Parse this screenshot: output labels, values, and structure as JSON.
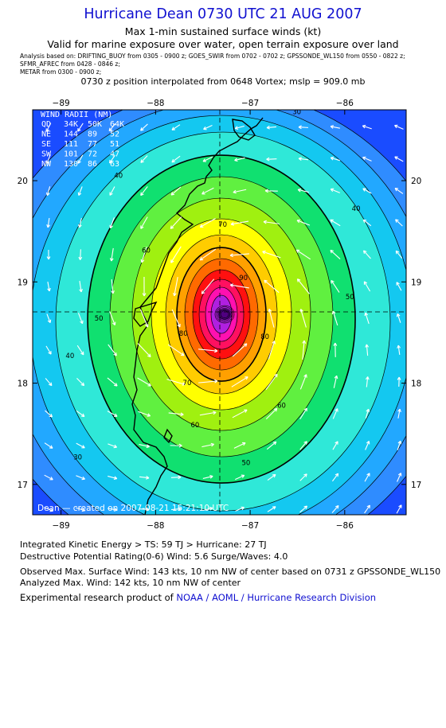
{
  "header": {
    "title": "Hurricane Dean 0730 UTC 21 AUG 2007",
    "subtitle1": "Max 1-min sustained surface winds (kt)",
    "subtitle2": "Valid for marine exposure over water, open terrain exposure over land",
    "sources": [
      "Analysis based on:  DRIFTING_BUOY from 0305 - 0900 z;  GOES_SWIR from 0702 - 0702 z;  GPSSONDE_WL150 from 0550 - 0822 z;",
      "SFMR_AFREC from 0428 - 0846 z;",
      "METAR from 0300 - 0900 z;"
    ],
    "position_line": "0730 z position interpolated from 0648 Vortex; mslp = 909.0 mb"
  },
  "map": {
    "lon_labels": [
      "−89",
      "−88",
      "−87",
      "−86"
    ],
    "lat_labels": [
      "20",
      "19",
      "18",
      "17"
    ],
    "lon_range": [
      -89.3,
      -85.35
    ],
    "lat_range": [
      16.7,
      20.7
    ],
    "center": {
      "lon": -87.27,
      "lat": 18.68
    },
    "credit": "Dean — created on 2007-08-21 15:21:10 UTC",
    "contour_labels": [
      "30",
      "30",
      "30",
      "40",
      "40",
      "40",
      "50",
      "50",
      "50",
      "60",
      "60",
      "60",
      "70",
      "70",
      "80",
      "80",
      "90"
    ],
    "wind_radii": {
      "title": "WIND RADII (NM)",
      "header": [
        "QD",
        "34K",
        "50K",
        "64K"
      ],
      "rows": [
        [
          "NE",
          "144",
          "89",
          "52"
        ],
        [
          "SE",
          "111",
          "77",
          "51"
        ],
        [
          "SW",
          "101",
          "72",
          "47"
        ],
        [
          "NW",
          "130",
          "86",
          "63"
        ]
      ]
    },
    "colors": {
      "blue_deep": "#1a4cff",
      "blue": "#2f8cff",
      "cyan": "#14c8f0",
      "aqua": "#2fe8d8",
      "green": "#10e070",
      "yellowgreen": "#a0f010",
      "yellow": "#ffff00",
      "orange": "#ffa000",
      "orangered": "#ff6a00",
      "red": "#ff1010",
      "magenta": "#ff10b0",
      "purple": "#b020e0"
    }
  },
  "footer": {
    "ike": "Integrated Kinetic Energy > TS: 59 TJ   > Hurricane: 27 TJ",
    "dpr": "Destructive Potential Rating(0-6)   Wind: 5.6 Surge/Waves: 4.0",
    "observed": "Observed Max. Surface Wind: 143 kts, 10 nm NW of center based on 0731 z GPSSONDE_WL150",
    "analyzed": "Analyzed Max. Wind: 142 kts, 10 nm NW of center",
    "product_prefix": "Experimental research product of ",
    "product_org": "NOAA / AOML / Hurricane Research Division"
  }
}
